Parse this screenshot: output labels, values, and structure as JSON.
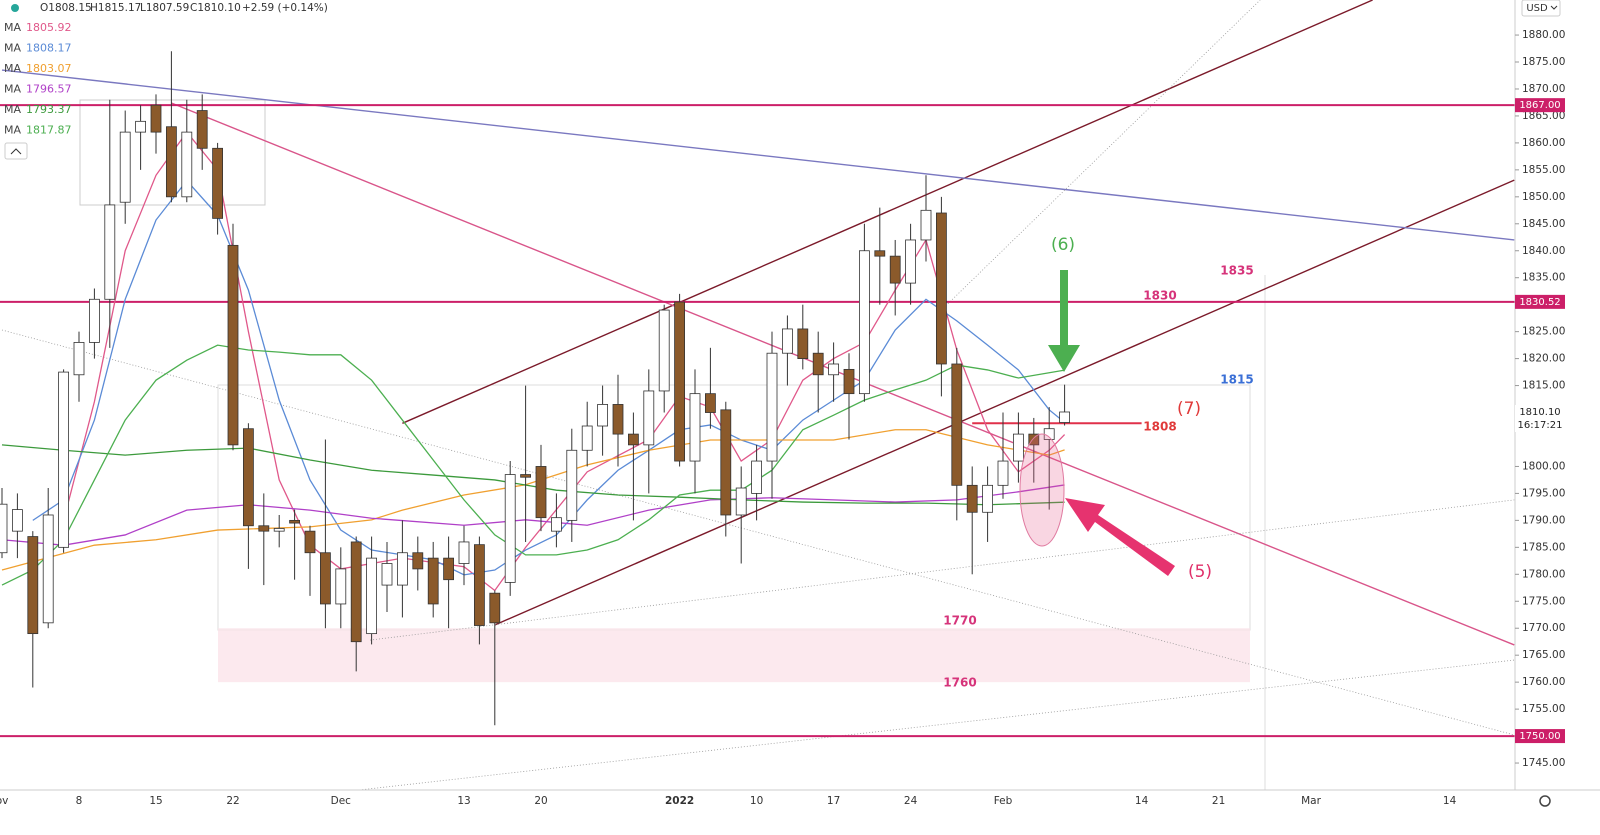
{
  "chart_data": {
    "type": "candlestick",
    "header": {
      "ohlc": [
        "O1808.15",
        "H1815.17",
        "L1807.59",
        "C1810.10"
      ],
      "change": "+2.59 (+0.14%)"
    },
    "currency": "USD",
    "categories": [
      "ov",
      null,
      null,
      null,
      null,
      "8",
      null,
      null,
      null,
      null,
      "15",
      null,
      null,
      null,
      null,
      "22",
      null,
      null,
      null,
      null,
      null,
      null,
      "Dec",
      null,
      null,
      null,
      null,
      null,
      null,
      null,
      "13",
      null,
      null,
      null,
      null,
      "20",
      null,
      null,
      null,
      null,
      null,
      null,
      null,
      null,
      "2022",
      null,
      null,
      null,
      null,
      "10",
      null,
      null,
      null,
      null,
      "17",
      null,
      null,
      null,
      null,
      "24",
      null,
      null,
      null,
      null,
      null,
      "Feb",
      null,
      null,
      null,
      null,
      null,
      null,
      null,
      null,
      "14",
      null,
      null,
      null,
      null,
      "21",
      null,
      null,
      null,
      null,
      null,
      "Mar",
      null,
      null,
      null,
      null,
      null,
      null,
      null,
      null,
      "14",
      null,
      null,
      null
    ],
    "open": [
      1784,
      1788,
      1787,
      1771,
      1785,
      1817,
      1823,
      1831,
      1849,
      1862,
      1867,
      1863,
      1850,
      1866,
      1859,
      1841,
      1807,
      1789,
      1788,
      1790,
      1788,
      1784,
      1774.5,
      1786,
      1769,
      1778,
      1778,
      1784,
      1783,
      1783,
      1782,
      1785.5,
      1776.5,
      1778.5,
      1798.5,
      1800,
      1788,
      1790,
      1803,
      1807.5,
      1811.5,
      1806,
      1804,
      1814,
      1830.5,
      1801,
      1813.5,
      1810.5,
      1791,
      1795,
      1801,
      1821,
      1825.5,
      1821,
      1817,
      1818,
      1813.5,
      1840,
      1839,
      1834,
      1842,
      1847,
      1819,
      1796.5,
      1791.5,
      1796.5,
      1801,
      1806,
      1805,
      1808.15,
      null,
      null,
      null,
      null,
      null,
      null,
      null,
      null,
      null,
      null,
      null,
      null,
      null,
      null,
      null,
      null,
      null,
      null,
      null,
      null,
      null,
      null,
      null,
      null,
      null,
      null,
      null,
      null
    ],
    "high": [
      1796,
      1795,
      1788,
      1796,
      1818,
      1825,
      1833,
      1868,
      1866,
      1867,
      1869,
      1877,
      1868,
      1869,
      1860,
      1845,
      1808,
      1795,
      1791,
      1792,
      1789,
      1805,
      1785,
      1787,
      1787,
      1786,
      1790,
      1787,
      1786,
      1787,
      1789,
      1787,
      1777,
      1801,
      1815,
      1804,
      1795,
      1807,
      1812,
      1815,
      1817,
      1810,
      1818,
      1830,
      1832,
      1818,
      1822,
      1812,
      1800,
      1804,
      1825,
      1828,
      1830,
      1825,
      1823,
      1821,
      1845,
      1848,
      1842,
      1845,
      1854,
      1850,
      1822,
      1800,
      1800,
      1810,
      1810,
      1809,
      1811,
      1815.17,
      null,
      null,
      null,
      null,
      null,
      null,
      null,
      null,
      null,
      null,
      null,
      null,
      null,
      null,
      null,
      null,
      null,
      null,
      null,
      null,
      null,
      null,
      null,
      null,
      null,
      null,
      null,
      null
    ],
    "low": [
      1783,
      1783,
      1759,
      1770,
      1784,
      1812,
      1820,
      1822,
      1845,
      1855,
      1858,
      1849,
      1849,
      1855,
      1843,
      1803,
      1781,
      1778,
      1785,
      1779,
      1776,
      1770,
      1770,
      1762,
      1767,
      1773,
      1772,
      1777,
      1772,
      1770,
      1778,
      1767,
      1752,
      1776,
      1786,
      1788,
      1785,
      1786,
      1800,
      1802,
      1800,
      1790,
      1795,
      1810,
      1800,
      1795,
      1807,
      1787,
      1782,
      1790,
      1794,
      1815,
      1818,
      1810,
      1812,
      1805,
      1812,
      1830,
      1828,
      1830,
      1838,
      1813,
      1790,
      1780,
      1786,
      1794,
      1797,
      1797,
      1792,
      1807.59,
      null,
      null,
      null,
      null,
      null,
      null,
      null,
      null,
      null,
      null,
      null,
      null,
      null,
      null,
      null,
      null,
      null,
      null,
      null,
      null,
      null,
      null,
      null,
      null,
      null,
      null,
      null,
      null
    ],
    "close": [
      1793,
      1792,
      1769,
      1791,
      1817.5,
      1823,
      1831,
      1848.5,
      1862,
      1864,
      1862,
      1850,
      1862,
      1859,
      1846,
      1804,
      1789,
      1788,
      1788.5,
      1789.5,
      1784,
      1774.5,
      1781,
      1767.5,
      1783,
      1782,
      1784,
      1781,
      1774.5,
      1779,
      1786,
      1770.5,
      1771,
      1798.5,
      1798,
      1790.5,
      1790.5,
      1803,
      1807.5,
      1811.5,
      1806,
      1804,
      1814,
      1829,
      1801,
      1813.5,
      1810,
      1791,
      1796,
      1801,
      1821,
      1825.5,
      1820,
      1817,
      1819,
      1813.5,
      1840,
      1839,
      1834,
      1842,
      1847.5,
      1819,
      1796.5,
      1791.5,
      1796.5,
      1801,
      1806,
      1804,
      1807,
      1810.1,
      null,
      null,
      null,
      null,
      null,
      null,
      null,
      null,
      null,
      null,
      null,
      null,
      null,
      null,
      null,
      null,
      null,
      null,
      null,
      null,
      null,
      null,
      null,
      null,
      null,
      null,
      null,
      null
    ],
    "up_color": "#ffffff",
    "down_color": "#8b5a2b",
    "ylim": [
      1740,
      1886.5
    ],
    "yticks": [
      {
        "value": 1880,
        "label": "1880.00"
      },
      {
        "value": 1875,
        "label": "1875.00"
      },
      {
        "value": 1870,
        "label": "1870.00"
      },
      {
        "value": 1865,
        "label": "1865.00"
      },
      {
        "value": 1860,
        "label": "1860.00"
      },
      {
        "value": 1855,
        "label": "1855.00"
      },
      {
        "value": 1850,
        "label": "1850.00"
      },
      {
        "value": 1845,
        "label": "1845.00"
      },
      {
        "value": 1840,
        "label": "1840.00"
      },
      {
        "value": 1835,
        "label": "1835.00"
      },
      {
        "value": 1825,
        "label": "1825.00"
      },
      {
        "value": 1820,
        "label": "1820.00"
      },
      {
        "value": 1815,
        "label": "1815.00"
      },
      {
        "value": 1800,
        "label": "1800.00"
      },
      {
        "value": 1795,
        "label": "1795.00"
      },
      {
        "value": 1790,
        "label": "1790.00"
      },
      {
        "value": 1785,
        "label": "1785.00"
      },
      {
        "value": 1780,
        "label": "1780.00"
      },
      {
        "value": 1775,
        "label": "1775.00"
      },
      {
        "value": 1770,
        "label": "1770.00"
      },
      {
        "value": 1765,
        "label": "1765.00"
      },
      {
        "value": 1760,
        "label": "1760.00"
      },
      {
        "value": 1755,
        "label": "1755.00"
      },
      {
        "value": 1745,
        "label": "1745.00"
      }
    ],
    "moving_averages": [
      {
        "name": "MA",
        "value": 1805.92,
        "color": "#e0588a",
        "x": [
          4,
          6,
          8,
          10,
          12,
          14,
          16,
          18,
          20,
          22,
          26,
          30,
          32,
          34,
          38,
          42,
          44,
          46,
          48,
          50,
          52,
          54,
          56,
          58,
          60,
          62,
          64,
          66,
          68,
          69
        ],
        "values": [
          1790,
          1812,
          1840,
          1854,
          1862,
          1855,
          1825,
          1797.5,
          1785.4,
          1781,
          1783,
          1781.4,
          1777,
          1785,
          1799,
          1805,
          1813,
          1811,
          1801,
          1805,
          1816,
          1820,
          1823,
          1832.7,
          1842,
          1821.6,
          1806.8,
          1799,
          1803,
          1805.92
        ]
      },
      {
        "name": "MA",
        "value": 1808.17,
        "color": "#5b8bd6",
        "x": [
          2,
          4,
          6,
          8,
          10,
          12,
          14,
          16,
          18,
          20,
          22,
          24,
          26,
          28,
          30,
          32,
          34,
          36,
          38,
          40,
          42,
          44,
          46,
          48,
          50,
          52,
          54,
          56,
          58,
          60,
          62,
          64,
          66,
          68,
          69
        ],
        "values": [
          1790,
          1793.8,
          1808.6,
          1831,
          1845.7,
          1853,
          1846.6,
          1832.7,
          1812.3,
          1797.5,
          1788.2,
          1784.5,
          1783.6,
          1782.7,
          1779.9,
          1780.8,
          1784.5,
          1787.3,
          1793.8,
          1799.3,
          1803,
          1806.8,
          1807.7,
          1804.9,
          1803,
          1808.6,
          1812.3,
          1816,
          1825.3,
          1831,
          1827,
          1822.5,
          1817.9,
          1810.5,
          1808.17
        ]
      },
      {
        "name": "MA",
        "value": 1803.07,
        "color": "#f0a030",
        "x": [
          0,
          6,
          10,
          14,
          20,
          24,
          26,
          30,
          34,
          38,
          42,
          46,
          50,
          54,
          58,
          60,
          64,
          68,
          69
        ],
        "values": [
          1780.8,
          1785.4,
          1786.4,
          1788.2,
          1788.8,
          1790.1,
          1791.9,
          1794.7,
          1796.6,
          1800.3,
          1803,
          1804.9,
          1804.9,
          1804.9,
          1806.8,
          1806.8,
          1804,
          1802.1,
          1803.07
        ]
      },
      {
        "name": "MA",
        "value": 1796.57,
        "color": "#b040c8",
        "x": [
          0,
          4,
          8,
          12,
          16,
          20,
          24,
          30,
          34,
          38,
          42,
          46,
          50,
          54,
          58,
          62,
          66,
          69
        ],
        "values": [
          1786.4,
          1785.4,
          1787.3,
          1791.9,
          1792.9,
          1791.9,
          1790.4,
          1789.1,
          1790.1,
          1789.1,
          1791.9,
          1793.8,
          1794.2,
          1793.8,
          1793.4,
          1793.8,
          1795.3,
          1796.57
        ]
      },
      {
        "name": "MA",
        "value": 1793.37,
        "color": "#3c9a3c",
        "x": [
          0,
          4,
          8,
          12,
          16,
          20,
          24,
          28,
          32,
          36,
          40,
          44,
          48,
          52,
          56,
          60,
          64,
          69
        ],
        "values": [
          1804,
          1803,
          1802.1,
          1803,
          1803.4,
          1801.2,
          1799.3,
          1798.4,
          1797.5,
          1795.6,
          1794.7,
          1794.3,
          1793.8,
          1793.4,
          1793.2,
          1793.2,
          1792.9,
          1793.37
        ]
      },
      {
        "name": "MA",
        "value": 1817.87,
        "color": "#4caf50",
        "x": [
          0,
          2,
          4,
          6,
          8,
          10,
          12,
          14,
          16,
          18,
          20,
          22,
          24,
          26,
          28,
          30,
          32,
          34,
          36,
          38,
          40,
          42,
          44,
          46,
          48,
          50,
          52,
          54,
          56,
          58,
          60,
          62,
          64,
          66,
          69
        ],
        "values": [
          1778,
          1780.8,
          1786.4,
          1797.5,
          1808.6,
          1816,
          1819.7,
          1822.5,
          1821.6,
          1821.2,
          1820.7,
          1820.7,
          1816,
          1808.6,
          1801.2,
          1793.8,
          1787.3,
          1783.6,
          1783.6,
          1784.5,
          1786.4,
          1790.1,
          1794.7,
          1795.6,
          1795.6,
          1799.3,
          1806.8,
          1809.5,
          1812.3,
          1814.2,
          1816,
          1818.8,
          1817.9,
          1816.4,
          1817.87
        ]
      }
    ],
    "levels": [
      {
        "value": 1867,
        "label": "1867.00"
      },
      {
        "value": 1830.52,
        "label": "1830.52"
      },
      {
        "value": 1750,
        "label": "1750.00"
      }
    ],
    "level_color": "#cc1f68",
    "last_price": {
      "value": 1810.1,
      "label": "1810.10"
    },
    "countdown": "16:17:21",
    "trendlines": [
      {
        "from": [
          26,
          1808
        ],
        "to": [
          89,
          1886.5
        ],
        "color": "#7b1a2a",
        "style": "solid"
      },
      {
        "from": [
          32,
          1770.6
        ],
        "to": [
          98.2,
          1853.1
        ],
        "color": "#7b1a2a",
        "style": "solid"
      },
      {
        "from": [
          11,
          1867.4
        ],
        "to": [
          98.2,
          1766.9
        ],
        "color": "#d9558a",
        "style": "solid"
      },
      {
        "from": [
          0,
          1873.5
        ],
        "to": [
          98.2,
          1842
        ],
        "color": "#7a78c0",
        "style": "solid"
      },
      {
        "from": [
          0,
          1825.3
        ],
        "to": [
          98.2,
          1750.2
        ],
        "color": "#999999",
        "style": "dotted"
      },
      {
        "from": [
          23.9,
          1767.8
        ],
        "to": [
          98.2,
          1793.8
        ],
        "color": "#999999",
        "style": "dotted"
      },
      {
        "from": [
          23.2,
          1740
        ],
        "to": [
          98.2,
          1764.1
        ],
        "color": "#999999",
        "style": "dotted"
      },
      {
        "from": [
          61,
          1829
        ],
        "to": [
          81.7,
          1886.5
        ],
        "color": "#999999",
        "style": "dotted"
      },
      {
        "from": [
          63,
          1808
        ],
        "to": [
          74,
          1808
        ],
        "color": "#e0304a",
        "style": "solid"
      }
    ],
    "zones": [
      {
        "from": 1760,
        "to": 1770,
        "color": "#fbe3ea"
      }
    ],
    "annotations": [
      {
        "text": "(6)",
        "color": "#4caf50"
      },
      {
        "text": "(7)",
        "color": "#e03a3a"
      },
      {
        "text": "(5)",
        "color": "#e0306a"
      },
      {
        "text": "1835",
        "color": "#d6337a"
      },
      {
        "text": "1830",
        "color": "#d6337a"
      },
      {
        "text": "1815",
        "color": "#3a6fd6"
      },
      {
        "text": "1808",
        "color": "#e03a3a"
      },
      {
        "text": "1770",
        "color": "#d6337a"
      },
      {
        "text": "1760",
        "color": "#d6337a"
      }
    ]
  }
}
